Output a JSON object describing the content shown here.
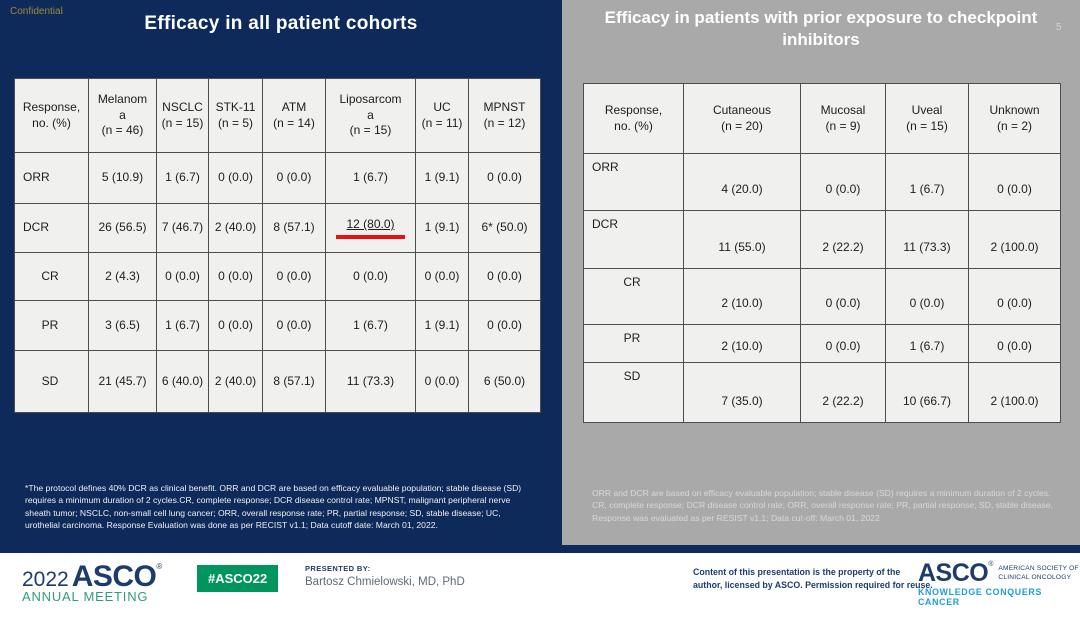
{
  "slide": {
    "confidential": "Confidential",
    "page_number": "5"
  },
  "left_panel": {
    "title": "Efficacy in all patient cohorts",
    "table": {
      "columns": [
        "Response,\nno. (%)",
        "Melanom\na\n(n = 46)",
        "NSCLC\n(n = 15)",
        "STK-11\n(n = 5)",
        "ATM\n(n = 14)",
        "Liposarcom\na\n(n = 15)",
        "UC\n(n = 11)",
        "MPNST\n(n = 12)"
      ],
      "rows": [
        {
          "label": "ORR",
          "sub": false,
          "values": [
            "5 (10.9)",
            "1 (6.7)",
            "0 (0.0)",
            "0 (0.0)",
            "1 (6.7)",
            "1 (9.1)",
            "0 (0.0)"
          ]
        },
        {
          "label": "DCR",
          "sub": false,
          "underline_index": 4,
          "values": [
            "26 (56.5)",
            "7 (46.7)",
            "2 (40.0)",
            "8 (57.1)",
            "12 (80.0)",
            "1 (9.1)",
            "6* (50.0)"
          ]
        },
        {
          "label": "CR",
          "sub": true,
          "values": [
            "2 (4.3)",
            "0 (0.0)",
            "0 (0.0)",
            "0 (0.0)",
            "0 (0.0)",
            "0 (0.0)",
            "0 (0.0)"
          ]
        },
        {
          "label": "PR",
          "sub": true,
          "values": [
            "3 (6.5)",
            "1 (6.7)",
            "0 (0.0)",
            "0 (0.0)",
            "1 (6.7)",
            "1 (9.1)",
            "0 (0.0)"
          ]
        },
        {
          "label": "SD",
          "sub": true,
          "values": [
            "21 (45.7)",
            "6 (40.0)",
            "2 (40.0)",
            "8 (57.1)",
            "11 (73.3)",
            "0 (0.0)",
            "6 (50.0)"
          ]
        }
      ]
    },
    "footnote": "*The protocol defines 40% DCR as clinical benefit. ORR and DCR are based on efficacy evaluable population; stable disease (SD) requires a minimum duration of 2 cycles.CR, complete response; DCR disease control rate; MPNST, malignant peripheral nerve sheath tumor; NSCLC, non-small cell lung cancer; ORR, overall response rate; PR, partial response; SD, stable disease; UC, urothelial carcinoma. Response Evaluation was done as per RECIST v1.1; Data cutoff date: March 01, 2022."
  },
  "right_panel": {
    "title": "Efficacy in patients with prior exposure to checkpoint inhibitors",
    "table": {
      "columns": [
        "Response,\nno. (%)",
        "Cutaneous\n(n = 20)",
        "Mucosal\n(n = 9)",
        "Uveal\n(n = 15)",
        "Unknown\n(n = 2)"
      ],
      "rows": [
        {
          "label": "ORR",
          "sub": false,
          "values": [
            "4 (20.0)",
            "0 (0.0)",
            "1 (6.7)",
            "0 (0.0)"
          ]
        },
        {
          "label": "DCR",
          "sub": false,
          "values": [
            "11 (55.0)",
            "2 (22.2)",
            "11 (73.3)",
            "2 (100.0)"
          ]
        },
        {
          "label": "CR",
          "sub": true,
          "values": [
            "2 (10.0)",
            "0 (0.0)",
            "0 (0.0)",
            "0 (0.0)"
          ]
        },
        {
          "label": "PR",
          "sub": true,
          "values": [
            "2 (10.0)",
            "0 (0.0)",
            "1 (6.7)",
            "0 (0.0)"
          ]
        },
        {
          "label": "SD",
          "sub": true,
          "values": [
            "7 (35.0)",
            "2 (22.2)",
            "10 (66.7)",
            "2 (100.0)"
          ]
        }
      ]
    },
    "footnote": "ORR and DCR are based on efficacy evaluable population; stable disease (SD) requires a minimum duration of 2 cycles. CR, complete response; DCR disease control rate; ORR, overall response rate; PR, partial response; SD, stable disease. Response was evaluated as per RESIST v1.1; Data cut-off: March 01, 2022"
  },
  "footer": {
    "logo_year": "2022",
    "logo_asco": "ASCO",
    "logo_reg": "®",
    "logo_meeting": "ANNUAL MEETING",
    "hashtag": "#ASCO22",
    "presented_by_label": "PRESENTED BY:",
    "presenter": "Bartosz Chmielowski, MD, PhD",
    "copyright": "Content of this presentation is the property of the\nauthor, licensed by ASCO. Permission required for reuse.",
    "asco_logo": "ASCO",
    "asco_reg": "®",
    "asco_society": "AMERICAN SOCIETY OF\nCLINICAL ONCOLOGY",
    "asco_tagline": "KNOWLEDGE CONQUERS CANCER"
  },
  "colors": {
    "navy": "#0e2a5a",
    "panel_gray": "#a9a9a9",
    "cell_bg": "#f0f0ee",
    "border_dark": "#4d4d4d",
    "red": "#e81010",
    "gold": "#9a8836",
    "asco_navy": "#1d3c6e",
    "asco_green": "#2f9e77",
    "badge_green": "#00945e",
    "asco_cyan": "#209cd8",
    "footer_gray_text": "#5f6b76"
  }
}
